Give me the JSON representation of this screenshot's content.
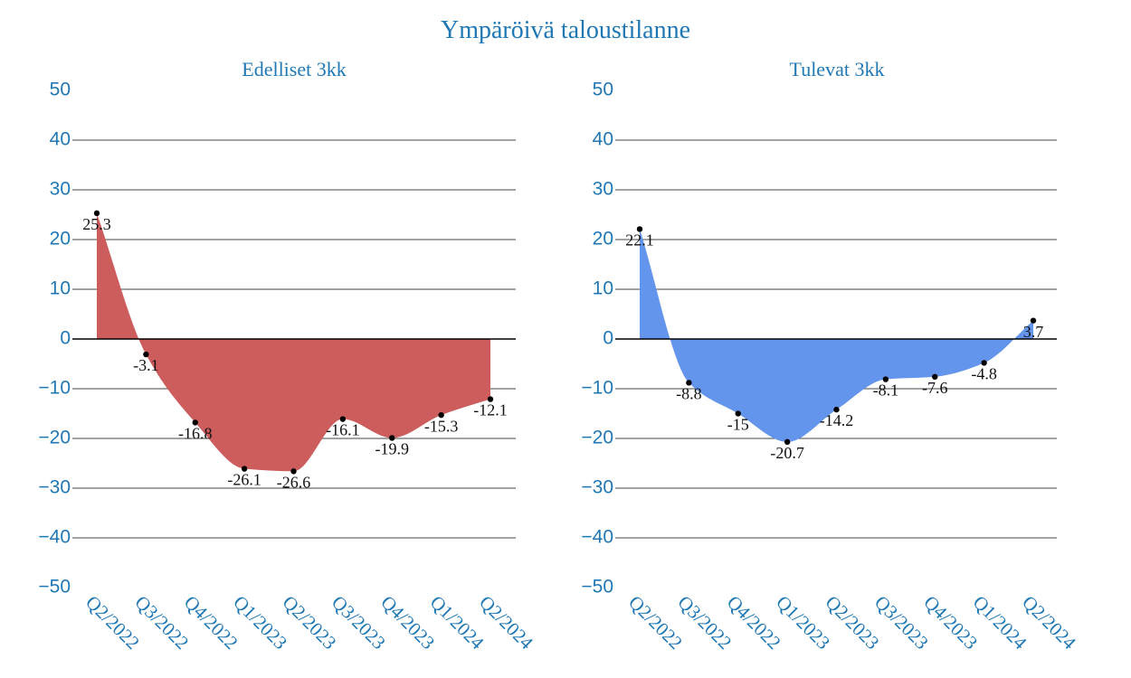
{
  "title": "Ympäröivä taloustilanne",
  "chart_data": [
    {
      "type": "area",
      "title": "Edelliset 3kk",
      "categories": [
        "Q2/2022",
        "Q3/2022",
        "Q4/2022",
        "Q1/2023",
        "Q2/2023",
        "Q3/2023",
        "Q4/2023",
        "Q1/2024",
        "Q2/2024"
      ],
      "values": [
        25.3,
        -3.1,
        -16.8,
        -26.1,
        -26.6,
        -16.1,
        -19.9,
        -15.3,
        -12.1
      ],
      "ylim": [
        -50,
        50
      ],
      "yticks": [
        50,
        40,
        30,
        20,
        10,
        0,
        -10,
        -20,
        -30,
        -40,
        -50
      ],
      "color": "#cd5c5c",
      "grid": true
    },
    {
      "type": "area",
      "title": "Tulevat 3kk",
      "categories": [
        "Q2/2022",
        "Q3/2022",
        "Q4/2022",
        "Q1/2023",
        "Q2/2023",
        "Q3/2023",
        "Q4/2023",
        "Q1/2024",
        "Q2/2024"
      ],
      "values": [
        22.1,
        -8.8,
        -15,
        -20.7,
        -14.2,
        -8.1,
        -7.6,
        -4.8,
        3.7
      ],
      "ylim": [
        -50,
        50
      ],
      "yticks": [
        50,
        40,
        30,
        20,
        10,
        0,
        -10,
        -20,
        -30,
        -40,
        -50
      ],
      "color": "#6495ed",
      "grid": true
    }
  ]
}
